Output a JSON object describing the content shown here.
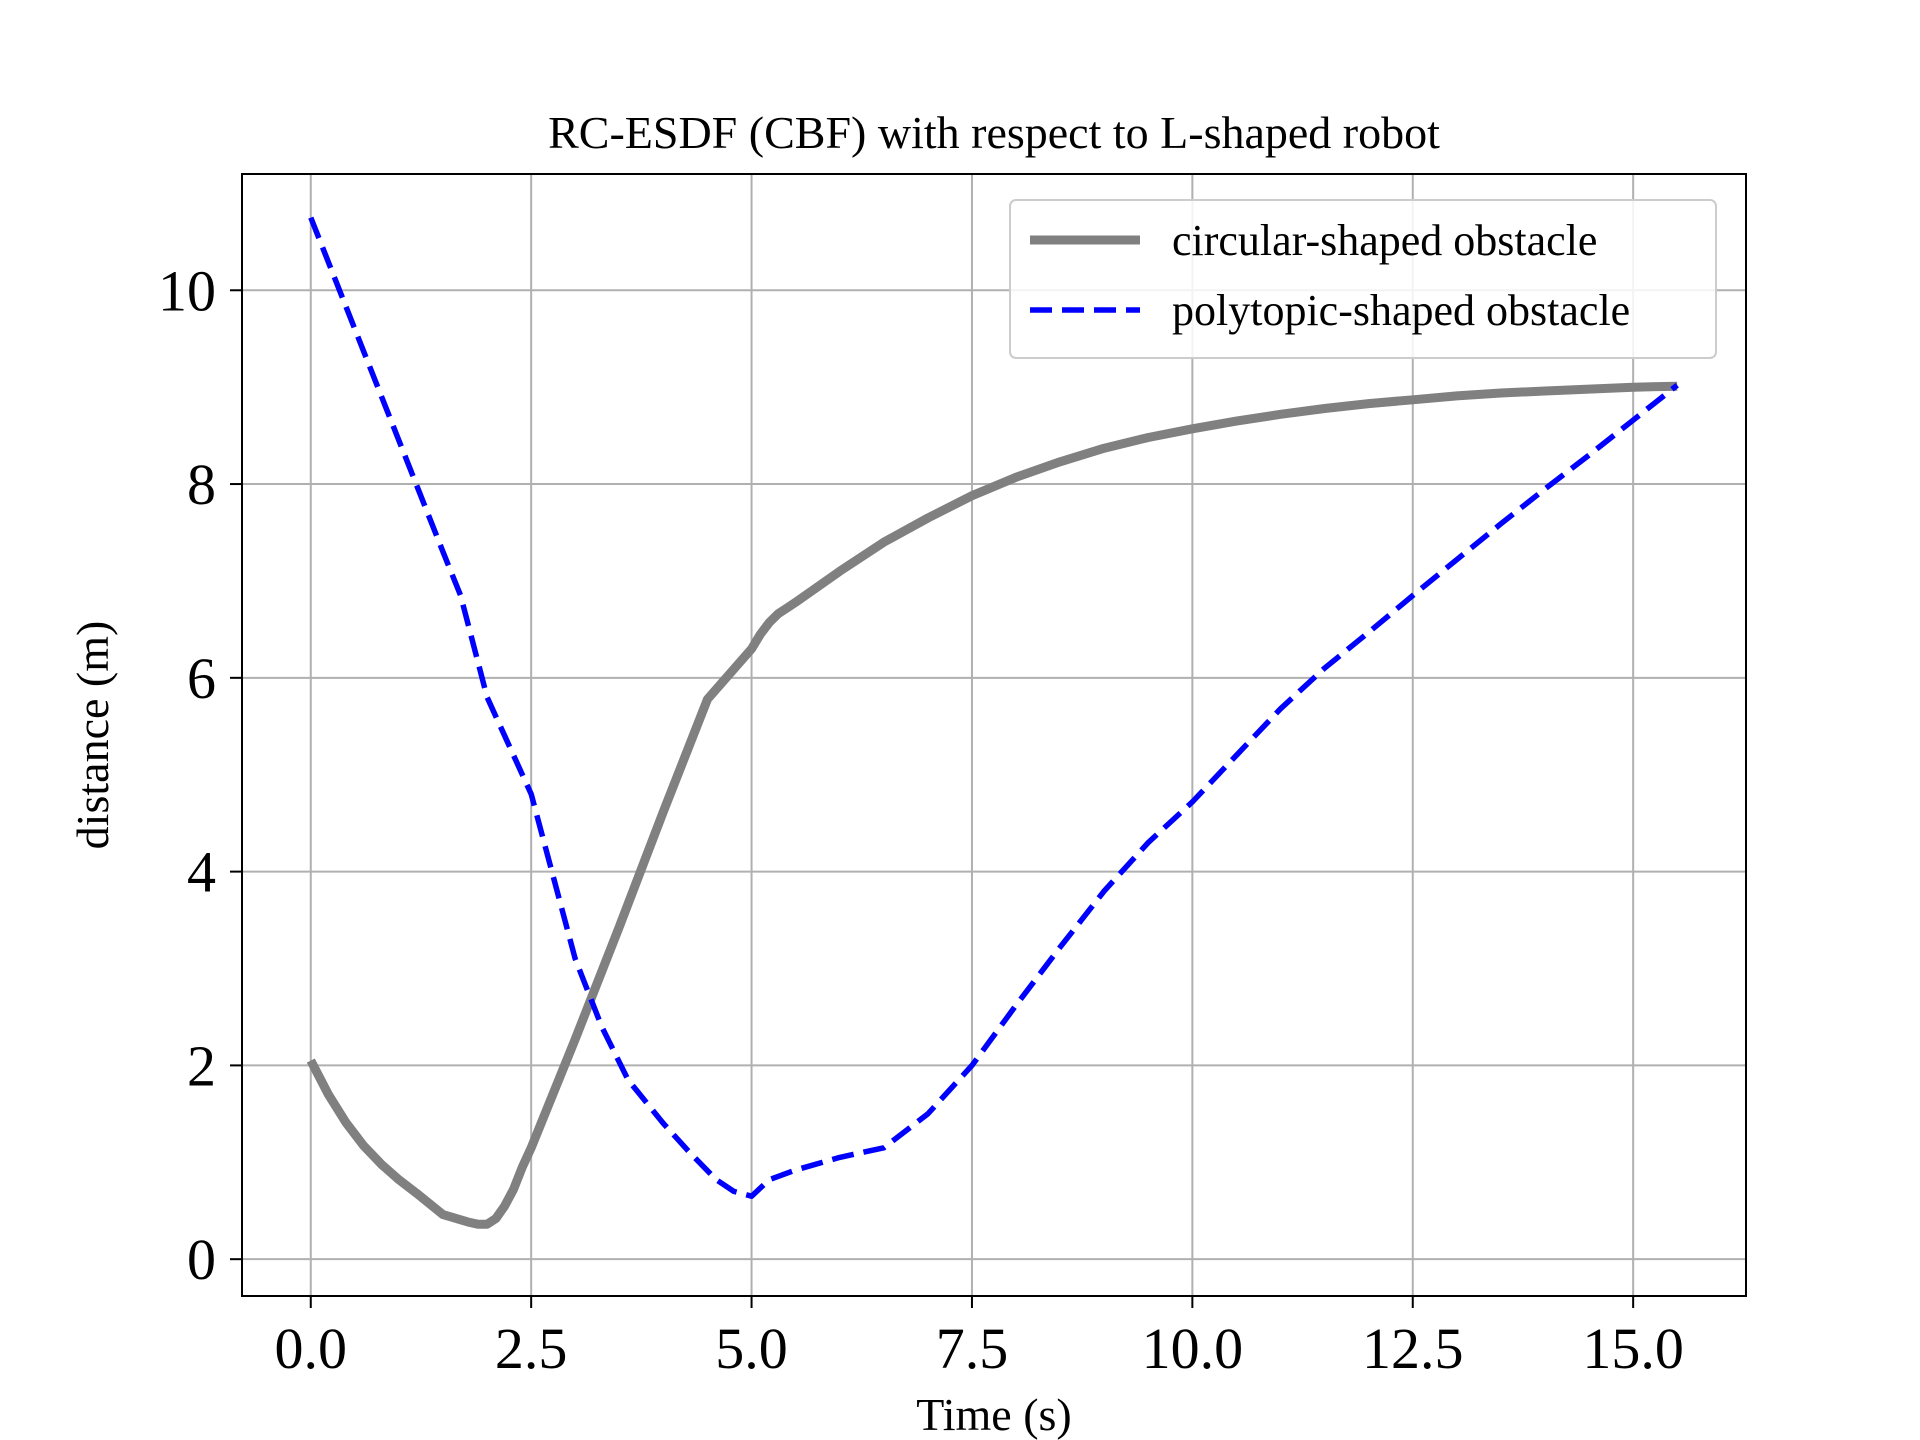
{
  "chart_data": {
    "type": "line",
    "title": "RC-ESDF (CBF) with respect to L-shaped robot",
    "xlabel": "Time (s)",
    "ylabel": "distance (m)",
    "xlim": [
      -0.78,
      16.28
    ],
    "ylim": [
      -0.38,
      11.2
    ],
    "x_ticks": [
      0.0,
      2.5,
      5.0,
      7.5,
      10.0,
      12.5,
      15.0
    ],
    "x_tick_labels": [
      "0.0",
      "2.5",
      "5.0",
      "7.5",
      "10.0",
      "12.5",
      "15.0"
    ],
    "y_ticks": [
      0,
      2,
      4,
      6,
      8,
      10
    ],
    "y_tick_labels": [
      "0",
      "2",
      "4",
      "6",
      "8",
      "10"
    ],
    "grid": true,
    "legend_position": "top-right",
    "series": [
      {
        "name": "circular-shaped obstacle",
        "color": "#808080",
        "style": "solid",
        "x": [
          0.0,
          0.2,
          0.4,
          0.6,
          0.8,
          1.0,
          1.2,
          1.5,
          1.8,
          1.9,
          2.0,
          2.1,
          2.2,
          2.3,
          2.4,
          2.5,
          3.0,
          3.5,
          4.0,
          4.5,
          5.0,
          5.1,
          5.2,
          5.3,
          5.4,
          5.5,
          6.0,
          6.5,
          7.0,
          7.5,
          8.0,
          8.5,
          9.0,
          9.5,
          10.0,
          10.5,
          11.0,
          11.5,
          12.0,
          12.5,
          13.0,
          13.5,
          14.0,
          14.5,
          15.0,
          15.5
        ],
        "values": [
          2.05,
          1.7,
          1.41,
          1.17,
          0.98,
          0.82,
          0.68,
          0.46,
          0.38,
          0.36,
          0.36,
          0.42,
          0.55,
          0.72,
          0.95,
          1.15,
          2.27,
          3.43,
          4.62,
          5.78,
          6.3,
          6.45,
          6.57,
          6.66,
          6.72,
          6.78,
          7.1,
          7.4,
          7.65,
          7.88,
          8.07,
          8.23,
          8.37,
          8.48,
          8.57,
          8.65,
          8.72,
          8.78,
          8.83,
          8.87,
          8.91,
          8.94,
          8.96,
          8.98,
          9.0,
          9.01
        ]
      },
      {
        "name": "polytopic-shaped obstacle",
        "color": "#0000ff",
        "style": "dashed",
        "x": [
          0.0,
          0.5,
          1.0,
          1.5,
          1.7,
          2.0,
          2.5,
          3.0,
          3.3,
          3.6,
          4.0,
          4.3,
          4.6,
          4.8,
          5.0,
          5.2,
          5.5,
          6.0,
          6.5,
          7.0,
          7.5,
          8.0,
          8.5,
          9.0,
          9.5,
          10.0,
          10.5,
          11.0,
          11.5,
          12.0,
          12.5,
          13.0,
          13.5,
          14.0,
          14.5,
          15.0,
          15.5
        ],
        "values": [
          10.75,
          9.6,
          8.45,
          7.3,
          6.85,
          5.8,
          4.8,
          3.1,
          2.4,
          1.85,
          1.4,
          1.1,
          0.82,
          0.7,
          0.65,
          0.82,
          0.92,
          1.05,
          1.15,
          1.5,
          2.0,
          2.62,
          3.22,
          3.8,
          4.3,
          4.72,
          5.2,
          5.68,
          6.1,
          6.47,
          6.85,
          7.22,
          7.59,
          7.95,
          8.3,
          8.66,
          9.02
        ]
      }
    ]
  }
}
